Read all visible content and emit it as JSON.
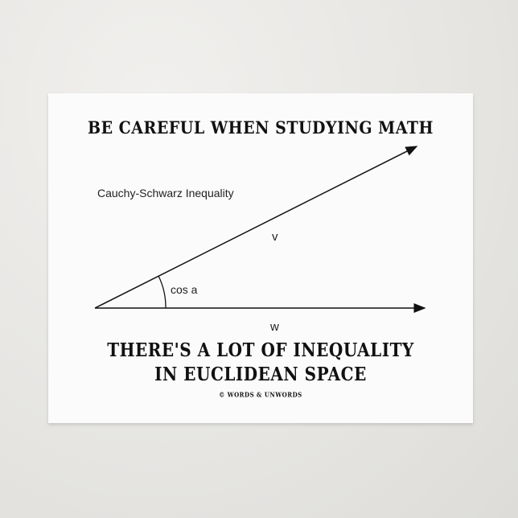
{
  "card": {
    "headline": "BE CAREFUL WHEN STUDYING MATH",
    "subtitle": "Cauchy-Schwarz Inequality",
    "vector_v": "v",
    "vector_w": "w",
    "angle_label": "cos a",
    "bottom_line1": "THERE'S A LOT OF INEQUALITY",
    "bottom_line2": "IN EUCLIDEAN SPACE",
    "copyright": "© WORDS & UNWORDS"
  }
}
